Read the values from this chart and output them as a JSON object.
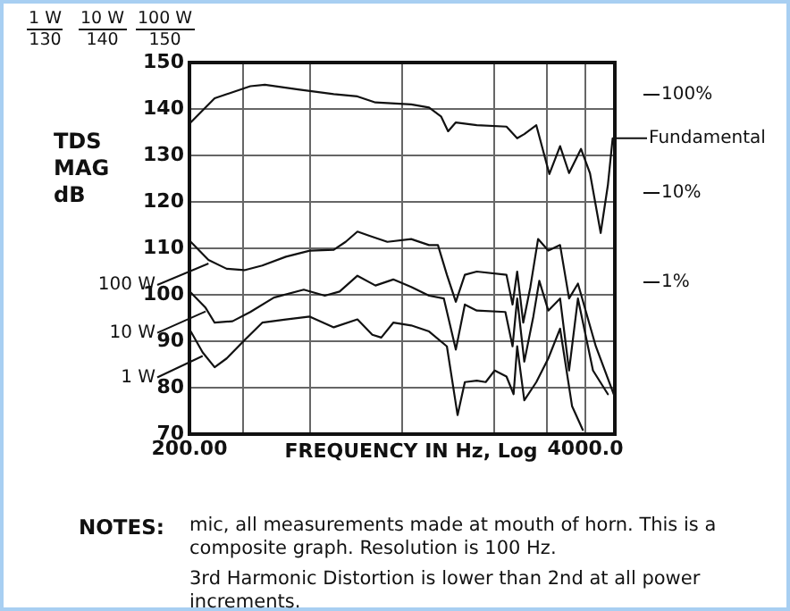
{
  "chart_data": {
    "type": "line",
    "xlabel": "FREQUENCY IN Hz, Log",
    "ylabel": "TDS MAG dB",
    "log": "x",
    "xlim": [
      200,
      5000
    ],
    "xticks": [
      {
        "value": 200,
        "label": "200.00"
      },
      {
        "value": 300,
        "label": null
      },
      {
        "value": 500,
        "label": null
      },
      {
        "value": 1000,
        "label": null
      },
      {
        "value": 2000,
        "label": null
      },
      {
        "value": 3000,
        "label": null
      },
      {
        "value": 4000,
        "label": "4000.0"
      }
    ],
    "ylim": [
      70,
      150
    ],
    "yticks": [
      70,
      80,
      90,
      100,
      110,
      120,
      130,
      140,
      150
    ],
    "grid": true,
    "legend": "left",
    "marker": "none",
    "line_style": "solid",
    "annotations": [
      "1 W",
      "130",
      "10 W",
      "140",
      "100 W",
      "150",
      "NOTES:",
      "mic, all measurements made at mouth of horn. This is a composite graph. Resolution is 100 Hz.",
      "3rd Harmonic Distortion is lower than 2nd at all power increments.",
      "100%",
      "10%",
      "1%"
    ],
    "series": [
      {
        "name": "Fundamental",
        "color": "#111111",
        "x": [
          202,
          242,
          317,
          354,
          455,
          596,
          713,
          817,
          1071,
          1226,
          1342,
          1416,
          1501,
          1759,
          2202,
          2388,
          2520,
          2760,
          3046,
          3304,
          3536,
          3870,
          4142,
          4492,
          4743,
          4918
        ],
        "values": [
          137.1,
          142.3,
          144.9,
          145.2,
          144.2,
          143.2,
          142.7,
          141.4,
          141,
          140.3,
          138.4,
          135.2,
          137.1,
          136.5,
          136.2,
          133.7,
          134.6,
          136.5,
          126,
          132,
          126.2,
          131.4,
          126.2,
          113.3,
          123.6,
          133.7
        ]
      },
      {
        "name": "100 W",
        "color": "#111111",
        "x": [
          202,
          231,
          265,
          303,
          347,
          415,
          497,
          596,
          652,
          713,
          781,
          894,
          1071,
          1226,
          1311,
          1403,
          1501,
          1607,
          1759,
          2202,
          2306,
          2388,
          2500,
          2639,
          2797,
          3022,
          3304,
          3536,
          3782,
          4330,
          4959
        ],
        "values": [
          111.4,
          107.5,
          105.6,
          105.3,
          106.3,
          108.2,
          109.5,
          109.7,
          111.4,
          113.6,
          112.7,
          111.4,
          112,
          110.7,
          110.7,
          104.3,
          98.5,
          104.3,
          105,
          104.3,
          97.9,
          105,
          94,
          101.7,
          112,
          109.5,
          110.7,
          99.2,
          102.4,
          88.9,
          78.6
        ]
      },
      {
        "name": "10 W",
        "color": "#111111",
        "x": [
          202,
          226,
          242,
          277,
          317,
          379,
          475,
          557,
          623,
          713,
          817,
          935,
          1071,
          1226,
          1371,
          1501,
          1607,
          1759,
          2184,
          2306,
          2388,
          2520,
          2698,
          2823,
          3022,
          3304,
          3536,
          3782,
          4238,
          4743
        ],
        "values": [
          100.5,
          97.2,
          94,
          94.3,
          96.3,
          99.4,
          101.1,
          99.8,
          100.7,
          104.1,
          102,
          103.3,
          101.7,
          99.8,
          99.2,
          88.2,
          97.9,
          96.6,
          96.3,
          88.9,
          99.2,
          85.6,
          95.3,
          103,
          96.6,
          99.2,
          83.7,
          99.2,
          83.7,
          78.6
        ]
      },
      {
        "name": "1 W",
        "color": "#111111",
        "x": [
          202,
          221,
          242,
          265,
          303,
          347,
          415,
          497,
          596,
          713,
          798,
          854,
          935,
          1071,
          1226,
          1403,
          1521,
          1607,
          1759,
          1882,
          2014,
          2202,
          2324,
          2388,
          2520,
          2760,
          3022,
          3304,
          3618,
          3923
        ],
        "values": [
          92.1,
          87.6,
          84.4,
          86.3,
          90.2,
          94,
          94.7,
          95.3,
          93,
          94.7,
          91.4,
          90.8,
          94,
          93.4,
          92.1,
          88.9,
          74.1,
          81.2,
          81.5,
          81.2,
          83.7,
          82.4,
          78.6,
          88.9,
          77.3,
          81.2,
          86.3,
          92.7,
          76,
          70.9
        ]
      }
    ]
  }
}
